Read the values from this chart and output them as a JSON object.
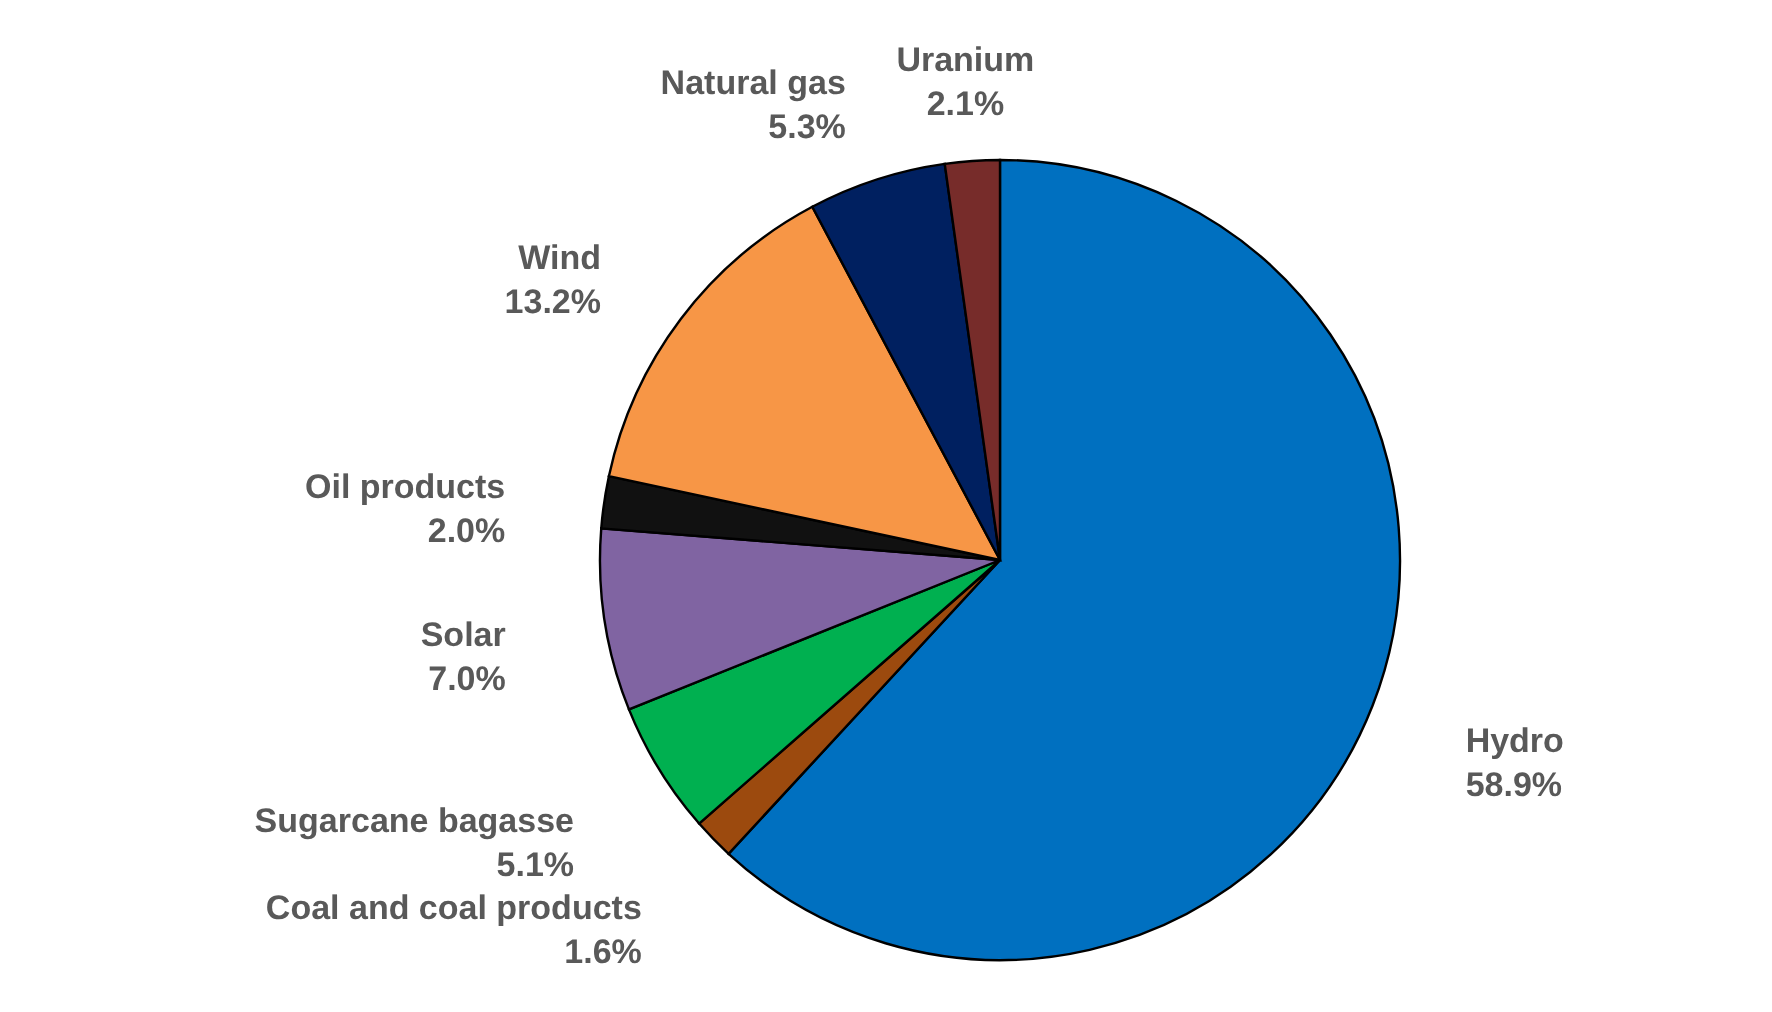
{
  "chart_data": {
    "type": "pie",
    "categories": [
      "Hydro",
      "Coal and coal products",
      "Sugarcane bagasse",
      "Solar",
      "Oil products",
      "Wind",
      "Natural gas",
      "Uranium"
    ],
    "values": [
      58.9,
      1.6,
      5.1,
      7.0,
      2.0,
      13.2,
      5.3,
      2.1
    ],
    "value_labels": [
      "58.9%",
      "1.6%",
      "5.1%",
      "7.0%",
      "2.0%",
      "13.2%",
      "5.3%",
      "2.1%"
    ],
    "colors": [
      "#0070c0",
      "#9c4a0e",
      "#00b050",
      "#8064a2",
      "#111111",
      "#f79646",
      "#002060",
      "#772c2a"
    ]
  }
}
